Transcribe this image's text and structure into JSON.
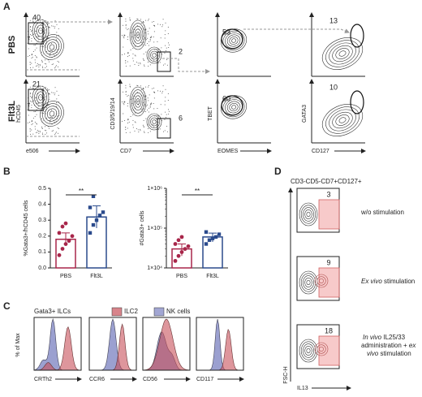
{
  "panel_a": {
    "label": "A",
    "rows": [
      "PBS",
      "Flt3L"
    ],
    "columns": [
      {
        "y_label": "hCD45",
        "x_label": "e506",
        "gate_values": [
          40,
          21
        ]
      },
      {
        "y_label": "CD3/5/19/14",
        "x_label": "CD7",
        "gate_values": [
          2,
          6
        ]
      },
      {
        "y_label": "TBET",
        "x_label": "EOMES",
        "gate_values": [
          53,
          60
        ]
      },
      {
        "y_label": "GATA3",
        "x_label": "CD127",
        "gate_values": [
          13,
          10
        ]
      }
    ]
  },
  "panel_b": {
    "label": "B",
    "charts": [
      {
        "type": "bar",
        "y_label": "%Gata3+/hCD45 cells",
        "categories": [
          "PBS",
          "Flt3L"
        ],
        "values": [
          0.18,
          0.32
        ],
        "errors": [
          0.04,
          0.07
        ],
        "colors": [
          "#a8264a",
          "#2a4a8c"
        ],
        "points": [
          [
            0.08,
            0.12,
            0.15,
            0.17,
            0.2,
            0.22,
            0.26,
            0.28
          ],
          [
            0.22,
            0.27,
            0.3,
            0.33,
            0.35,
            0.38,
            0.45
          ]
        ],
        "ylim": [
          0,
          0.5
        ],
        "yticks": [
          {
            "value": 0,
            "label": "0.0"
          },
          0.1,
          0.2,
          0.3,
          0.4,
          0.5
        ],
        "significance": "**",
        "log": false
      },
      {
        "type": "bar",
        "y_label": "#Gata3+ cells",
        "categories": [
          "PBS",
          "Flt3L"
        ],
        "values": [
          30000,
          60000
        ],
        "errors": [
          10000,
          15000
        ],
        "colors": [
          "#a8264a",
          "#2a4a8c"
        ],
        "points": [
          [
            15000,
            20000,
            25000,
            30000,
            35000,
            40000,
            50000,
            60000
          ],
          [
            40000,
            50000,
            55000,
            60000,
            70000,
            80000
          ]
        ],
        "ylim": [
          10000,
          1000000
        ],
        "yticks": [
          {
            "value": 10000,
            "label": "1×10⁴"
          },
          {
            "value": 100000,
            "label": "1×10⁵"
          },
          {
            "value": 1000000,
            "label": "1×10⁶"
          }
        ],
        "significance": "**",
        "log": true
      }
    ]
  },
  "panel_c": {
    "label": "C",
    "title": "Gata3+ ILCs",
    "y_label": "% of Max",
    "legend": [
      {
        "name": "ILC2",
        "color": "#c8505a"
      },
      {
        "name": "NK cells",
        "color": "#7a80c0"
      }
    ],
    "markers": [
      "CRTh2",
      "CCR6",
      "CD56",
      "CD117"
    ]
  },
  "panel_d": {
    "label": "D",
    "title": "CD3-CD5-CD7+CD127+",
    "y_label": "FSC-H",
    "x_label": "IL13",
    "gate_values": [
      3,
      9,
      18
    ],
    "caption_1": "w/o stimulation",
    "caption_2": [
      "Ex vivo",
      " stimulation"
    ],
    "caption_3": [
      [
        "In vivo",
        " IL25/33"
      ],
      [
        "administration + ",
        "ex"
      ],
      [
        "vivo",
        " stimulation"
      ]
    ]
  }
}
